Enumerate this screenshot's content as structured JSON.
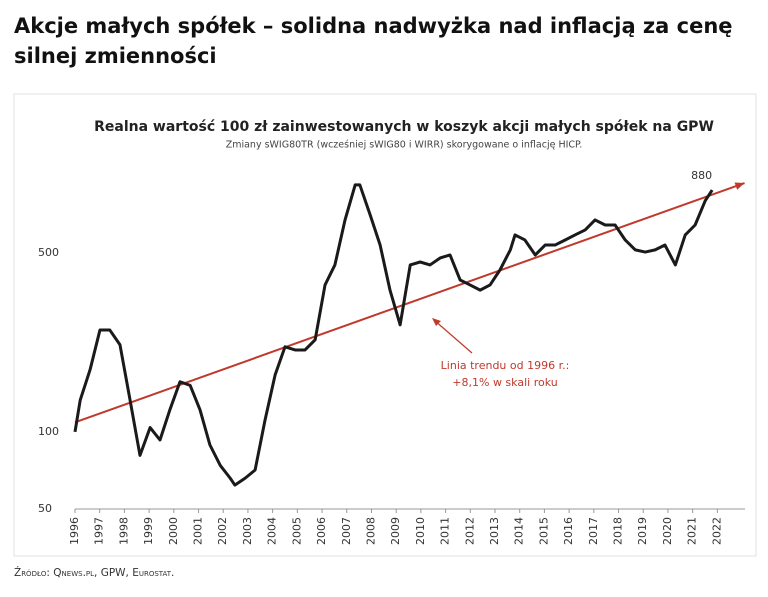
{
  "header": {
    "title_lines": [
      "Akcje małych spółek – solidna nadwyżka nad inflacją za cenę",
      "silnej zmienności"
    ]
  },
  "source": "Źródło: Qnews.pl, GPW, Eurostat.",
  "chart_data": {
    "type": "line",
    "title": "Realna wartość 100 zł zainwestowanych w koszyk akcji małych spółek na GPW",
    "subtitle": "Zmiany sWIG80TR (wcześniej sWIG80 i WIRR) skorygowane o inflację HICP.",
    "log_scale": true,
    "xlim": [
      1996,
      2023.2
    ],
    "xticks": [
      1996,
      1997,
      1998,
      1999,
      2000,
      2001,
      2002,
      2003,
      2004,
      2005,
      2006,
      2007,
      2008,
      2009,
      2010,
      2011,
      2012,
      2013,
      2014,
      2015,
      2016,
      2017,
      2018,
      2019,
      2020,
      2021,
      2022
    ],
    "ylim": [
      50,
      1100
    ],
    "yticks": [
      50,
      100,
      500
    ],
    "series": [
      {
        "color": "#1a1a1a",
        "x": [
          1996,
          1996.21,
          1996.61,
          1997.01,
          1997.41,
          1997.82,
          1998.23,
          1998.63,
          1999.04,
          1999.44,
          1999.84,
          2000.25,
          2000.66,
          2001.06,
          2001.46,
          2001.88,
          2002.28,
          2002.47,
          2002.89,
          2003.29,
          2003.69,
          2004.1,
          2004.5,
          2004.91,
          2005.31,
          2005.72,
          2006.12,
          2006.52,
          2006.93,
          2007.34,
          2007.53,
          2007.95,
          2008.35,
          2008.75,
          2009.16,
          2009.57,
          2009.97,
          2010.37,
          2010.78,
          2011.18,
          2011.59,
          2011.99,
          2012.4,
          2012.8,
          2013.2,
          2013.62,
          2013.81,
          2014.21,
          2014.63,
          2015.03,
          2015.43,
          2015.84,
          2016.24,
          2016.65,
          2017.05,
          2017.46,
          2017.86,
          2018.27,
          2018.68,
          2019.08,
          2019.48,
          2019.88,
          2020.3,
          2020.7,
          2021.1,
          2021.51,
          2021.79
        ],
        "values": [
          100,
          133,
          175,
          250,
          250,
          219,
          133,
          81,
          104,
          93,
          122,
          157,
          152,
          122,
          89,
          74,
          66,
          62,
          66,
          71,
          111,
          167,
          215,
          209,
          209,
          229,
          375,
          449,
          673,
          922,
          922,
          703,
          537,
          358,
          262,
          449,
          461,
          449,
          478,
          491,
          392,
          375,
          358,
          375,
          429,
          514,
          588,
          562,
          491,
          537,
          537,
          562,
          588,
          615,
          673,
          643,
          643,
          562,
          514,
          504,
          514,
          537,
          449,
          588,
          643,
          800,
          880
        ]
      }
    ],
    "trend": {
      "color": "#c0392b",
      "x": [
        1996,
        2023.1
      ],
      "values": [
        109,
        938
      ]
    },
    "annotation_lines": [
      "Linia trendu od 1996 r.:",
      "+8,1% w skali roku"
    ]
  }
}
